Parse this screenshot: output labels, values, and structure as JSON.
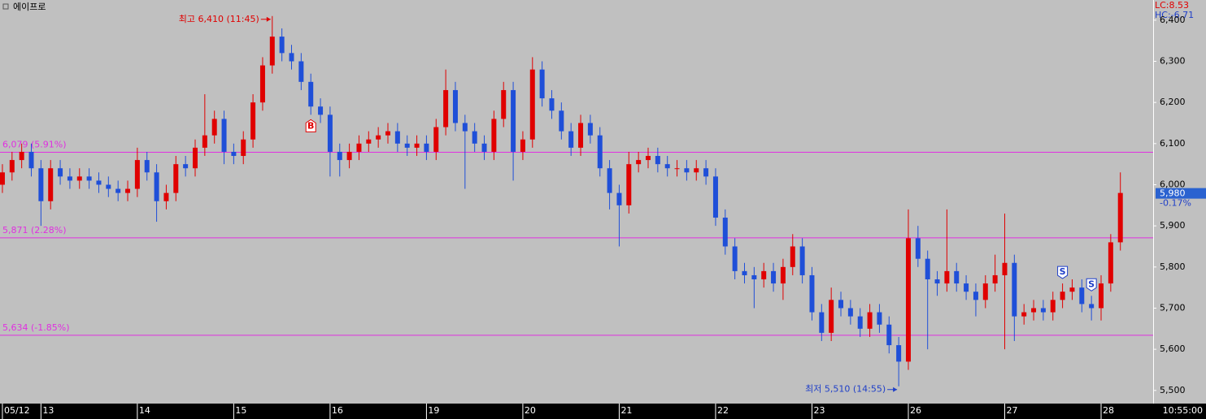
{
  "window_title": "에이프로",
  "time": "10:55:00",
  "chart_data": {
    "type": "candlestick",
    "open": [
      6000,
      6030,
      6060,
      6080,
      6040,
      5960,
      6040,
      6020,
      6010,
      6020,
      6010,
      6000,
      5990,
      5980,
      5990,
      6060,
      6030,
      5960,
      5980,
      6050,
      6040,
      6090,
      6120,
      6160,
      6080,
      6070,
      6110,
      6200,
      6290,
      6360,
      6320,
      6300,
      6250,
      6190,
      6170,
      6080,
      6060,
      6080,
      6100,
      6110,
      6120,
      6130,
      6100,
      6090,
      6100,
      6080,
      6140,
      6230,
      6150,
      6130,
      6100,
      6080,
      6160,
      6230,
      6080,
      6110,
      6280,
      6210,
      6180,
      6130,
      6090,
      6150,
      6120,
      6040,
      5980,
      5950,
      6050,
      6060,
      6070,
      6050,
      6040,
      6040,
      6030,
      6040,
      6020,
      5920,
      5850,
      5790,
      5780,
      5770,
      5790,
      5760,
      5800,
      5850,
      5780,
      5690,
      5640,
      5720,
      5700,
      5680,
      5650,
      5690,
      5660,
      5610,
      5570,
      5870,
      5820,
      5770,
      5760,
      5790,
      5760,
      5740,
      5720,
      5760,
      5780,
      5810,
      5680,
      5690,
      5700,
      5690,
      5720,
      5740,
      5750,
      5710,
      5700,
      5760,
      5860
    ],
    "high": [
      6050,
      6080,
      6100,
      6100,
      6060,
      6060,
      6060,
      6040,
      6040,
      6040,
      6030,
      6020,
      6010,
      6010,
      6090,
      6080,
      6050,
      6000,
      6070,
      6070,
      6110,
      6220,
      6180,
      6180,
      6100,
      6130,
      6220,
      6310,
      6410,
      6380,
      6340,
      6320,
      6270,
      6210,
      6190,
      6100,
      6100,
      6120,
      6130,
      6140,
      6150,
      6150,
      6120,
      6120,
      6120,
      6160,
      6280,
      6250,
      6170,
      6150,
      6120,
      6180,
      6250,
      6250,
      6130,
      6310,
      6300,
      6230,
      6200,
      6150,
      6170,
      6170,
      6140,
      6060,
      6000,
      6080,
      6080,
      6090,
      6090,
      6070,
      6060,
      6060,
      6060,
      6060,
      6040,
      5940,
      5870,
      5810,
      5800,
      5810,
      5810,
      5820,
      5880,
      5870,
      5800,
      5710,
      5750,
      5740,
      5720,
      5700,
      5710,
      5710,
      5680,
      5630,
      5940,
      5900,
      5840,
      5790,
      5940,
      5810,
      5780,
      5760,
      5780,
      5830,
      5930,
      5830,
      5710,
      5720,
      5720,
      5740,
      5760,
      5770,
      5770,
      5730,
      5780,
      5880,
      6030
    ],
    "low": [
      5980,
      6010,
      6040,
      6020,
      5900,
      5940,
      6000,
      5990,
      5990,
      5990,
      5980,
      5970,
      5960,
      5960,
      5970,
      6010,
      5910,
      5940,
      5960,
      6020,
      6020,
      6070,
      6100,
      6050,
      6050,
      6050,
      6090,
      6180,
      6270,
      6300,
      6280,
      6230,
      6170,
      6150,
      6020,
      6020,
      6040,
      6060,
      6080,
      6090,
      6100,
      6080,
      6070,
      6070,
      6060,
      6060,
      6120,
      6130,
      5990,
      6080,
      6060,
      6060,
      6140,
      6010,
      6060,
      6090,
      6190,
      6160,
      6110,
      6070,
      6070,
      6100,
      6020,
      5940,
      5850,
      5930,
      6030,
      6040,
      6030,
      6020,
      6020,
      6010,
      6010,
      6000,
      5900,
      5830,
      5770,
      5760,
      5700,
      5750,
      5740,
      5720,
      5780,
      5760,
      5670,
      5620,
      5620,
      5680,
      5660,
      5630,
      5630,
      5640,
      5590,
      5510,
      5550,
      5800,
      5600,
      5730,
      5740,
      5740,
      5720,
      5680,
      5700,
      5740,
      5600,
      5620,
      5660,
      5670,
      5670,
      5670,
      5700,
      5720,
      5690,
      5670,
      5670,
      5740,
      5840
    ],
    "close": [
      6030,
      6060,
      6080,
      6040,
      5960,
      6040,
      6020,
      6010,
      6020,
      6010,
      6000,
      5990,
      5980,
      5990,
      6060,
      6030,
      5960,
      5980,
      6050,
      6040,
      6090,
      6120,
      6160,
      6080,
      6070,
      6110,
      6200,
      6290,
      6360,
      6320,
      6300,
      6250,
      6190,
      6170,
      6080,
      6060,
      6080,
      6100,
      6110,
      6120,
      6130,
      6100,
      6090,
      6100,
      6080,
      6140,
      6230,
      6150,
      6130,
      6100,
      6080,
      6160,
      6230,
      6080,
      6110,
      6280,
      6210,
      6180,
      6130,
      6090,
      6150,
      6120,
      6040,
      5980,
      5950,
      6050,
      6060,
      6070,
      6050,
      6040,
      6040,
      6030,
      6040,
      6020,
      5920,
      5850,
      5790,
      5780,
      5770,
      5790,
      5760,
      5800,
      5850,
      5780,
      5690,
      5640,
      5720,
      5700,
      5680,
      5650,
      5690,
      5660,
      5610,
      5570,
      5870,
      5820,
      5770,
      5760,
      5790,
      5760,
      5740,
      5720,
      5760,
      5780,
      5810,
      5680,
      5690,
      5700,
      5690,
      5720,
      5740,
      5750,
      5710,
      5700,
      5760,
      5860,
      5980
    ],
    "up_color": "#e00000",
    "down_color": "#1f4fd8",
    "xlim": [
      -0.25,
      119.4
    ],
    "xticks": [
      {
        "value": 0,
        "label": "05/12"
      },
      {
        "value": 4,
        "label": "13"
      },
      {
        "value": 14,
        "label": "14"
      },
      {
        "value": 24,
        "label": "15"
      },
      {
        "value": 34,
        "label": "16"
      },
      {
        "value": 44,
        "label": "19"
      },
      {
        "value": 54,
        "label": "20"
      },
      {
        "value": 64,
        "label": "21"
      },
      {
        "value": 74,
        "label": "22"
      },
      {
        "value": 84,
        "label": "23"
      },
      {
        "value": 94,
        "label": "26"
      },
      {
        "value": 104,
        "label": "27"
      },
      {
        "value": 114,
        "label": "28"
      }
    ],
    "ylim": [
      5472,
      6449
    ],
    "yticks": [
      {
        "value": 5500,
        "label": "5,500"
      },
      {
        "value": 5600,
        "label": "5,600"
      },
      {
        "value": 5700,
        "label": "5,700"
      },
      {
        "value": 5800,
        "label": "5,800"
      },
      {
        "value": 5900,
        "label": "5,900"
      },
      {
        "value": 6000,
        "label": "6,000"
      },
      {
        "value": 6100,
        "label": "6,100"
      },
      {
        "value": 6200,
        "label": "6,200"
      },
      {
        "value": 6300,
        "label": "6,300"
      },
      {
        "value": 6400,
        "label": "6,400"
      }
    ],
    "hline_color": "#e030e0",
    "hlines": [
      {
        "value": 6079,
        "label": "6,079 (5.91%)"
      },
      {
        "value": 5871,
        "label": "5,871 (2.28%)"
      },
      {
        "value": 5634,
        "label": "5,634 (-1.85%)"
      }
    ],
    "annotations": [
      {
        "text": "최고 6,410 (11:45)",
        "x": 28,
        "y": 6410,
        "color": "#e00000"
      },
      {
        "text": "최저 5,510 (14:55)",
        "x": 93,
        "y": 5510,
        "color": "#1f3fc8"
      }
    ],
    "signals": [
      {
        "x": 32,
        "label": "B",
        "color": "#e00000",
        "at": "low"
      },
      {
        "x": 110,
        "label": "S",
        "color": "#1f3fc8",
        "at": "high"
      },
      {
        "x": 113,
        "label": "S",
        "color": "#1f3fc8",
        "at": "high"
      }
    ],
    "last_price": {
      "value": 5980,
      "label": "5,980",
      "change": "-0.17%",
      "color": "#2a62d0"
    },
    "lc": "LC:8.53",
    "hc": "HC:-6.71"
  }
}
